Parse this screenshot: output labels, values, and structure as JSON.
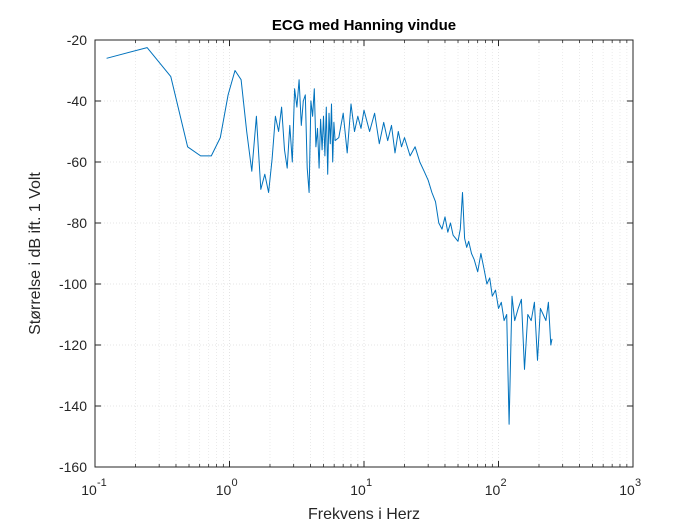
{
  "chart_data": {
    "type": "line",
    "title": "ECG med Hanning vindue",
    "xlabel": "Frekvens i Herz",
    "ylabel": "Størrelse i dB ift. 1 Volt",
    "xscale": "log",
    "xlim": [
      0.1,
      1000
    ],
    "ylim": [
      -160,
      -20
    ],
    "grid": true,
    "minor_grid": true,
    "x_ticks": [
      {
        "base": "10",
        "exp": "-1"
      },
      {
        "base": "10",
        "exp": "0"
      },
      {
        "base": "10",
        "exp": "1"
      },
      {
        "base": "10",
        "exp": "2"
      },
      {
        "base": "10",
        "exp": "3"
      }
    ],
    "y_ticks": [
      "-20",
      "-40",
      "-60",
      "-80",
      "-100",
      "-120",
      "-140",
      "-160"
    ],
    "colors": {
      "line": "#0072bd",
      "grid": "#dcdcdc",
      "axes": "#262626"
    },
    "series": [
      {
        "x": [
          0.122,
          0.244,
          0.366,
          0.488,
          0.61,
          0.732,
          0.854,
          0.976,
          1.098,
          1.22,
          1.342,
          1.464,
          1.586,
          1.708,
          1.83,
          1.952,
          2.074,
          2.196,
          2.318,
          2.44,
          2.562,
          2.684,
          2.806,
          2.928,
          3.05,
          3.172,
          3.294,
          3.416,
          3.538,
          3.66,
          3.782,
          3.904,
          4.026,
          4.148,
          4.27,
          4.392,
          4.514,
          4.636,
          4.758,
          4.88,
          5.002,
          5.124,
          5.246,
          5.368,
          5.49,
          5.612,
          5.734,
          5.856,
          5.978,
          6.1,
          6.5,
          7.0,
          7.5,
          8.0,
          8.5,
          9.0,
          9.5,
          10.0,
          11.0,
          12.0,
          13.0,
          14.0,
          15.0,
          16.0,
          17.0,
          18.0,
          19.0,
          20.0,
          22.0,
          24.0,
          26.0,
          28.0,
          30.0,
          32.0,
          34.0,
          36.0,
          38.0,
          40.0,
          42.0,
          44.0,
          46.0,
          48.0,
          50.0,
          52.0,
          54.0,
          56.0,
          58.0,
          60.0,
          63.0,
          66.0,
          70.0,
          74.0,
          78.0,
          82.0,
          86.0,
          90.0,
          95.0,
          100.0,
          105.0,
          110.0,
          115.0,
          120.0,
          126.0,
          132.0,
          140.0,
          148.0,
          156.0,
          165.0,
          175.0,
          185.0,
          195.0,
          205.0,
          215.0,
          225.0,
          235.0,
          245.0,
          250.0
        ],
        "y": [
          -26,
          -22.5,
          -32,
          -55,
          -58,
          -58,
          -52,
          -38,
          -30,
          -33,
          -50,
          -63,
          -45,
          -69,
          -64,
          -70,
          -59,
          -45,
          -50,
          -42,
          -56,
          -62,
          -48,
          -60,
          -36,
          -42,
          -33,
          -48,
          -40,
          -38,
          -62,
          -70,
          -40,
          -45,
          -36,
          -55,
          -49,
          -62,
          -46,
          -56,
          -45,
          -58,
          -42,
          -64,
          -44,
          -54,
          -41,
          -60,
          -47,
          -53,
          -52,
          -44,
          -57,
          -41,
          -50,
          -45,
          -49,
          -43,
          -50,
          -44,
          -54,
          -47,
          -53,
          -48,
          -57,
          -50,
          -55,
          -52,
          -58,
          -55,
          -60,
          -63,
          -66,
          -70,
          -73,
          -80,
          -82,
          -78,
          -83,
          -80,
          -84,
          -85,
          -86,
          -82,
          -70,
          -85,
          -88,
          -86,
          -90,
          -92,
          -96,
          -90,
          -95,
          -100,
          -98,
          -104,
          -102,
          -108,
          -106,
          -112,
          -110,
          -146,
          -104,
          -112,
          -108,
          -105,
          -128,
          -110,
          -112,
          -106,
          -125,
          -108,
          -110,
          -112,
          -106,
          -120,
          -118
        ]
      }
    ]
  }
}
